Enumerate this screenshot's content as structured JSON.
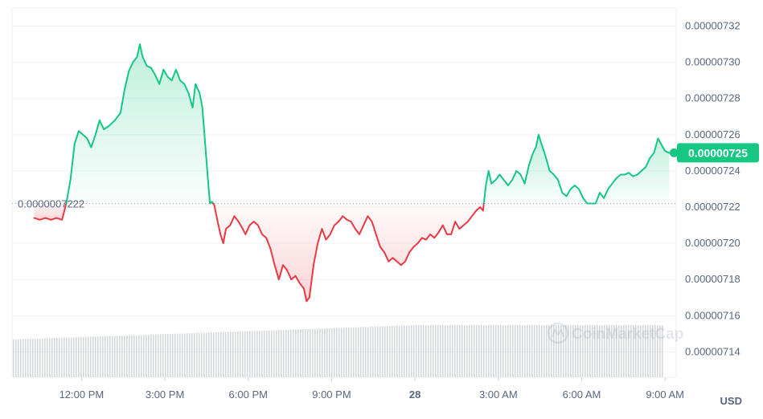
{
  "chart_data": {
    "type": "line",
    "currency_label": "USD",
    "watermark": "CoinMarketCap",
    "baseline": {
      "value": 7.222e-07,
      "label": "0.0000007222"
    },
    "current_price": {
      "value": 7.25e-07,
      "label": "0.00000725"
    },
    "ylim": [
      7.126e-07,
      7.33e-07
    ],
    "y_ticks": [
      {
        "value": 7.32e-07,
        "label": "0.00000732"
      },
      {
        "value": 7.3e-07,
        "label": "0.00000730"
      },
      {
        "value": 7.28e-07,
        "label": "0.00000728"
      },
      {
        "value": 7.26e-07,
        "label": "0.00000726"
      },
      {
        "value": 7.24e-07,
        "label": "0.00000724"
      },
      {
        "value": 7.22e-07,
        "label": "0.00000722"
      },
      {
        "value": 7.2e-07,
        "label": "0.00000720"
      },
      {
        "value": 7.18e-07,
        "label": "0.00000718"
      },
      {
        "value": 7.16e-07,
        "label": "0.00000716"
      },
      {
        "value": 7.14e-07,
        "label": "0.00000714"
      }
    ],
    "x_ticks": [
      {
        "t": 12,
        "label": "12:00 PM"
      },
      {
        "t": 15,
        "label": "3:00 PM"
      },
      {
        "t": 18,
        "label": "6:00 PM"
      },
      {
        "t": 21,
        "label": "9:00 PM"
      },
      {
        "t": 24,
        "label": "28",
        "bold": true
      },
      {
        "t": 27,
        "label": "3:00 AM"
      },
      {
        "t": 30,
        "label": "6:00 AM"
      },
      {
        "t": 33,
        "label": "9:00 AM"
      }
    ],
    "x_range": [
      9.5,
      33.4
    ],
    "colors": {
      "up": "#16c784",
      "down": "#ea3943",
      "volume": "#d4d7dc",
      "grid": "#eff2f5"
    },
    "series": [
      {
        "values": [
          [
            10.3,
            7.214e-07
          ],
          [
            10.5,
            7.213e-07
          ],
          [
            10.7,
            7.214e-07
          ],
          [
            10.9,
            7.213e-07
          ],
          [
            11.1,
            7.214e-07
          ],
          [
            11.3,
            7.213e-07
          ],
          [
            11.45,
            7.222e-07
          ],
          [
            11.6,
            7.235e-07
          ],
          [
            11.75,
            7.255e-07
          ],
          [
            11.9,
            7.262e-07
          ],
          [
            12.05,
            7.26e-07
          ],
          [
            12.2,
            7.258e-07
          ],
          [
            12.35,
            7.253e-07
          ],
          [
            12.5,
            7.26e-07
          ],
          [
            12.65,
            7.268e-07
          ],
          [
            12.8,
            7.263e-07
          ],
          [
            13.0,
            7.265e-07
          ],
          [
            13.2,
            7.268e-07
          ],
          [
            13.4,
            7.272e-07
          ],
          [
            13.55,
            7.285e-07
          ],
          [
            13.7,
            7.295e-07
          ],
          [
            13.85,
            7.3e-07
          ],
          [
            14.0,
            7.303e-07
          ],
          [
            14.1,
            7.31e-07
          ],
          [
            14.2,
            7.303e-07
          ],
          [
            14.35,
            7.298e-07
          ],
          [
            14.5,
            7.297e-07
          ],
          [
            14.65,
            7.293e-07
          ],
          [
            14.8,
            7.288e-07
          ],
          [
            14.95,
            7.296e-07
          ],
          [
            15.1,
            7.292e-07
          ],
          [
            15.25,
            7.29e-07
          ],
          [
            15.4,
            7.296e-07
          ],
          [
            15.55,
            7.29e-07
          ],
          [
            15.7,
            7.288e-07
          ],
          [
            15.85,
            7.283e-07
          ],
          [
            16.0,
            7.275e-07
          ],
          [
            16.1,
            7.288e-07
          ],
          [
            16.25,
            7.283e-07
          ],
          [
            16.35,
            7.275e-07
          ],
          [
            16.45,
            7.255e-07
          ],
          [
            16.55,
            7.235e-07
          ],
          [
            16.62,
            7.222e-07
          ],
          [
            16.7,
            7.223e-07
          ],
          [
            16.78,
            7.221e-07
          ],
          [
            16.9,
            7.212e-07
          ],
          [
            17.0,
            7.205e-07
          ],
          [
            17.1,
            7.2e-07
          ],
          [
            17.2,
            7.208e-07
          ],
          [
            17.35,
            7.21e-07
          ],
          [
            17.5,
            7.215e-07
          ],
          [
            17.65,
            7.212e-07
          ],
          [
            17.8,
            7.208e-07
          ],
          [
            17.9,
            7.205e-07
          ],
          [
            18.05,
            7.21e-07
          ],
          [
            18.2,
            7.212e-07
          ],
          [
            18.35,
            7.21e-07
          ],
          [
            18.5,
            7.205e-07
          ],
          [
            18.65,
            7.203e-07
          ],
          [
            18.8,
            7.197e-07
          ],
          [
            18.95,
            7.188e-07
          ],
          [
            19.1,
            7.18e-07
          ],
          [
            19.25,
            7.188e-07
          ],
          [
            19.4,
            7.185e-07
          ],
          [
            19.55,
            7.18e-07
          ],
          [
            19.7,
            7.182e-07
          ],
          [
            19.85,
            7.178e-07
          ],
          [
            20.0,
            7.175e-07
          ],
          [
            20.1,
            7.168e-07
          ],
          [
            20.2,
            7.17e-07
          ],
          [
            20.35,
            7.188e-07
          ],
          [
            20.5,
            7.2e-07
          ],
          [
            20.65,
            7.208e-07
          ],
          [
            20.8,
            7.202e-07
          ],
          [
            20.95,
            7.205e-07
          ],
          [
            21.1,
            7.21e-07
          ],
          [
            21.25,
            7.212e-07
          ],
          [
            21.4,
            7.215e-07
          ],
          [
            21.55,
            7.213e-07
          ],
          [
            21.7,
            7.212e-07
          ],
          [
            21.85,
            7.208e-07
          ],
          [
            22.0,
            7.205e-07
          ],
          [
            22.15,
            7.21e-07
          ],
          [
            22.3,
            7.215e-07
          ],
          [
            22.45,
            7.212e-07
          ],
          [
            22.6,
            7.205e-07
          ],
          [
            22.75,
            7.198e-07
          ],
          [
            22.9,
            7.195e-07
          ],
          [
            23.05,
            7.19e-07
          ],
          [
            23.2,
            7.192e-07
          ],
          [
            23.35,
            7.19e-07
          ],
          [
            23.5,
            7.188e-07
          ],
          [
            23.65,
            7.19e-07
          ],
          [
            23.8,
            7.195e-07
          ],
          [
            23.95,
            7.198e-07
          ],
          [
            24.1,
            7.2e-07
          ],
          [
            24.25,
            7.203e-07
          ],
          [
            24.4,
            7.202e-07
          ],
          [
            24.55,
            7.205e-07
          ],
          [
            24.7,
            7.203e-07
          ],
          [
            24.85,
            7.206e-07
          ],
          [
            25.0,
            7.21e-07
          ],
          [
            25.15,
            7.205e-07
          ],
          [
            25.3,
            7.205e-07
          ],
          [
            25.45,
            7.212e-07
          ],
          [
            25.6,
            7.208e-07
          ],
          [
            25.75,
            7.21e-07
          ],
          [
            25.9,
            7.212e-07
          ],
          [
            26.05,
            7.215e-07
          ],
          [
            26.2,
            7.218e-07
          ],
          [
            26.35,
            7.22e-07
          ],
          [
            26.45,
            7.218e-07
          ],
          [
            26.55,
            7.232e-07
          ],
          [
            26.65,
            7.24e-07
          ],
          [
            26.75,
            7.233e-07
          ],
          [
            26.9,
            7.235e-07
          ],
          [
            27.05,
            7.238e-07
          ],
          [
            27.2,
            7.235e-07
          ],
          [
            27.35,
            7.232e-07
          ],
          [
            27.5,
            7.235e-07
          ],
          [
            27.65,
            7.24e-07
          ],
          [
            27.8,
            7.238e-07
          ],
          [
            27.95,
            7.233e-07
          ],
          [
            28.1,
            7.243e-07
          ],
          [
            28.25,
            7.25e-07
          ],
          [
            28.35,
            7.253e-07
          ],
          [
            28.45,
            7.26e-07
          ],
          [
            28.55,
            7.255e-07
          ],
          [
            28.7,
            7.248e-07
          ],
          [
            28.85,
            7.24e-07
          ],
          [
            29.0,
            7.238e-07
          ],
          [
            29.15,
            7.235e-07
          ],
          [
            29.3,
            7.228e-07
          ],
          [
            29.45,
            7.226e-07
          ],
          [
            29.6,
            7.23e-07
          ],
          [
            29.75,
            7.232e-07
          ],
          [
            29.9,
            7.23e-07
          ],
          [
            30.05,
            7.225e-07
          ],
          [
            30.2,
            7.222e-07
          ],
          [
            30.35,
            7.222e-07
          ],
          [
            30.5,
            7.222e-07
          ],
          [
            30.65,
            7.228e-07
          ],
          [
            30.8,
            7.225e-07
          ],
          [
            30.95,
            7.23e-07
          ],
          [
            31.1,
            7.233e-07
          ],
          [
            31.25,
            7.236e-07
          ],
          [
            31.4,
            7.238e-07
          ],
          [
            31.55,
            7.238e-07
          ],
          [
            31.7,
            7.239e-07
          ],
          [
            31.85,
            7.237e-07
          ],
          [
            32.0,
            7.238e-07
          ],
          [
            32.15,
            7.24e-07
          ],
          [
            32.3,
            7.242e-07
          ],
          [
            32.45,
            7.247e-07
          ],
          [
            32.6,
            7.25e-07
          ],
          [
            32.75,
            7.258e-07
          ],
          [
            32.85,
            7.255e-07
          ],
          [
            33.0,
            7.251e-07
          ],
          [
            33.15,
            7.25e-07
          ]
        ]
      }
    ]
  }
}
